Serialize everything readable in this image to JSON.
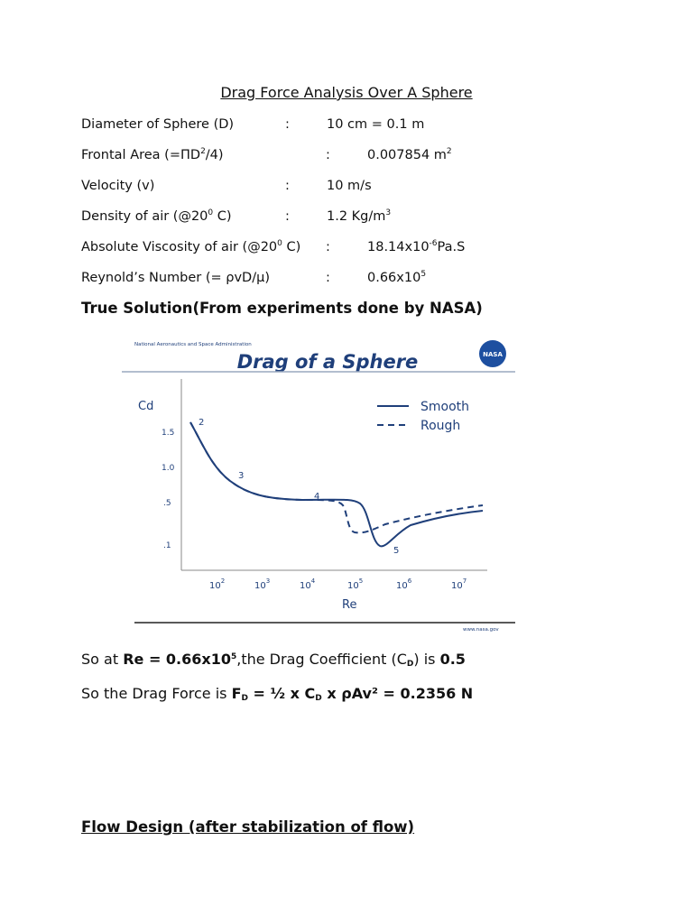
{
  "title": "Drag Force Analysis Over A Sphere",
  "properties": [
    {
      "label": [
        "Diameter of Sphere (D)"
      ],
      "colon": ":",
      "value": [
        "10 cm = 0.1 m"
      ]
    },
    {
      "label": [
        "Frontal Area (=ΠD",
        "2",
        "/4)"
      ],
      "colon": ":",
      "value": [
        "0.007854 m",
        "2"
      ]
    },
    {
      "label": [
        "Velocity (v)"
      ],
      "colon": ":",
      "value": [
        "10 m/s"
      ]
    },
    {
      "label": [
        "Density of air (@20",
        "0",
        " C)"
      ],
      "colon": ":",
      "value": [
        "1.2 Kg/m",
        "3"
      ]
    },
    {
      "label": [
        "Absolute Viscosity of air (@20",
        "0",
        " C)"
      ],
      "colon": ":",
      "value": [
        "18.14x10",
        "-6",
        "Pa.S"
      ]
    },
    {
      "label": [
        "Reynold’s Number (= ρvD/μ)"
      ],
      "colon": ":",
      "value": [
        "0.66x10",
        "5"
      ]
    }
  ],
  "solution_heading": "True Solution(From experiments done by NASA)",
  "figure": {
    "agency": "National Aeronautics and Space Administration",
    "logo": "NASA",
    "title": "Drag of a Sphere",
    "y_label": "Cd",
    "y_ticks": [
      "1.5",
      "1.0",
      ".5",
      ".1"
    ],
    "x_ticks": [
      {
        "base": "10",
        "exp": "2"
      },
      {
        "base": "10",
        "exp": "3"
      },
      {
        "base": "10",
        "exp": "4"
      },
      {
        "base": "10",
        "exp": "5"
      },
      {
        "base": "10",
        "exp": "6"
      },
      {
        "base": "10",
        "exp": "7"
      }
    ],
    "x_label": "Re",
    "legend": [
      "Smooth",
      "Rough"
    ],
    "point_labels": [
      "2",
      "3",
      "4",
      "5"
    ],
    "credit": "www.nasa.gov"
  },
  "result_line_1": [
    "So at ",
    "Re = 0.66x10",
    "5",
    ",the Drag Coefficient (C",
    "D",
    ") is ",
    "0.5"
  ],
  "result_line_2": [
    "So the Drag Force is ",
    "F",
    "D",
    " = ½ x C",
    "D",
    " x ρAv² = 0.2356 N"
  ],
  "flow_heading": "Flow Design (after stabilization of flow)"
}
